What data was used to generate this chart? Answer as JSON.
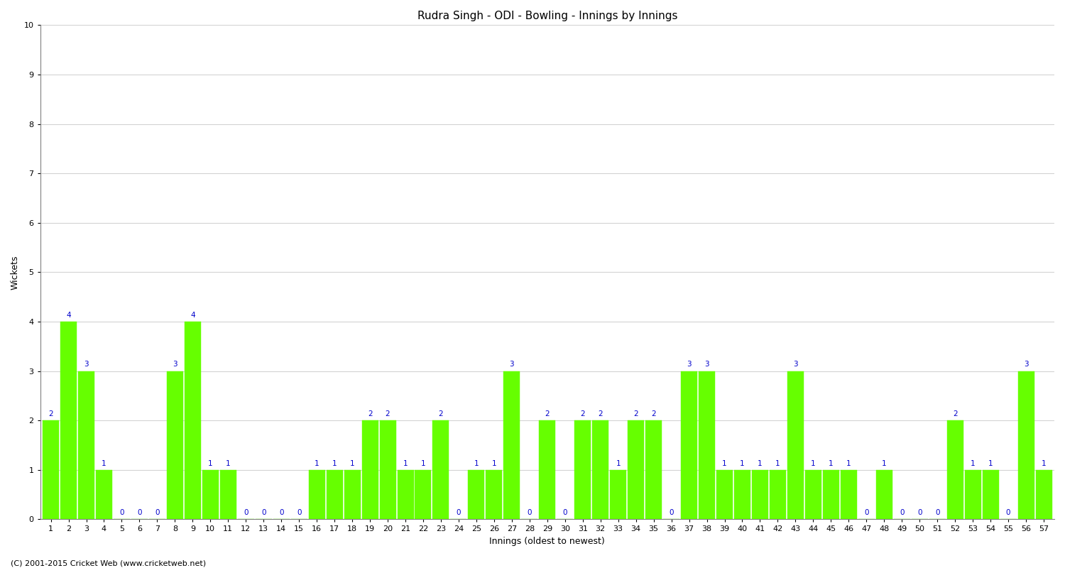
{
  "title": "Rudra Singh - ODI - Bowling - Innings by Innings",
  "xlabel": "Innings (oldest to newest)",
  "ylabel": "Wickets",
  "ylim": [
    0,
    10
  ],
  "yticks": [
    0,
    1,
    2,
    3,
    4,
    5,
    6,
    7,
    8,
    9,
    10
  ],
  "background_color": "#ffffff",
  "bar_color": "#66ff00",
  "label_color": "#0000cc",
  "innings": [
    1,
    2,
    3,
    4,
    5,
    6,
    7,
    8,
    9,
    10,
    11,
    12,
    13,
    14,
    15,
    16,
    17,
    18,
    19,
    20,
    21,
    22,
    23,
    24,
    25,
    26,
    27,
    28,
    29,
    30,
    31,
    32,
    33,
    34,
    35,
    36,
    37,
    38,
    39,
    40,
    41,
    42,
    43,
    44,
    45,
    46,
    47,
    48,
    49,
    50,
    51,
    52,
    53,
    54,
    55,
    56,
    57
  ],
  "wickets": [
    2,
    4,
    3,
    1,
    0,
    0,
    0,
    3,
    4,
    1,
    1,
    0,
    0,
    0,
    0,
    1,
    1,
    1,
    2,
    2,
    1,
    1,
    2,
    0,
    1,
    1,
    3,
    0,
    2,
    0,
    2,
    2,
    1,
    2,
    2,
    0,
    3,
    3,
    1,
    1,
    1,
    1,
    3,
    1,
    1,
    1,
    0,
    1,
    0,
    0,
    0,
    2,
    1,
    1,
    0,
    3,
    1
  ],
  "footer": "(C) 2001-2015 Cricket Web (www.cricketweb.net)",
  "title_fontsize": 11,
  "axis_label_fontsize": 9,
  "tick_fontsize": 8,
  "bar_label_fontsize": 7.5
}
